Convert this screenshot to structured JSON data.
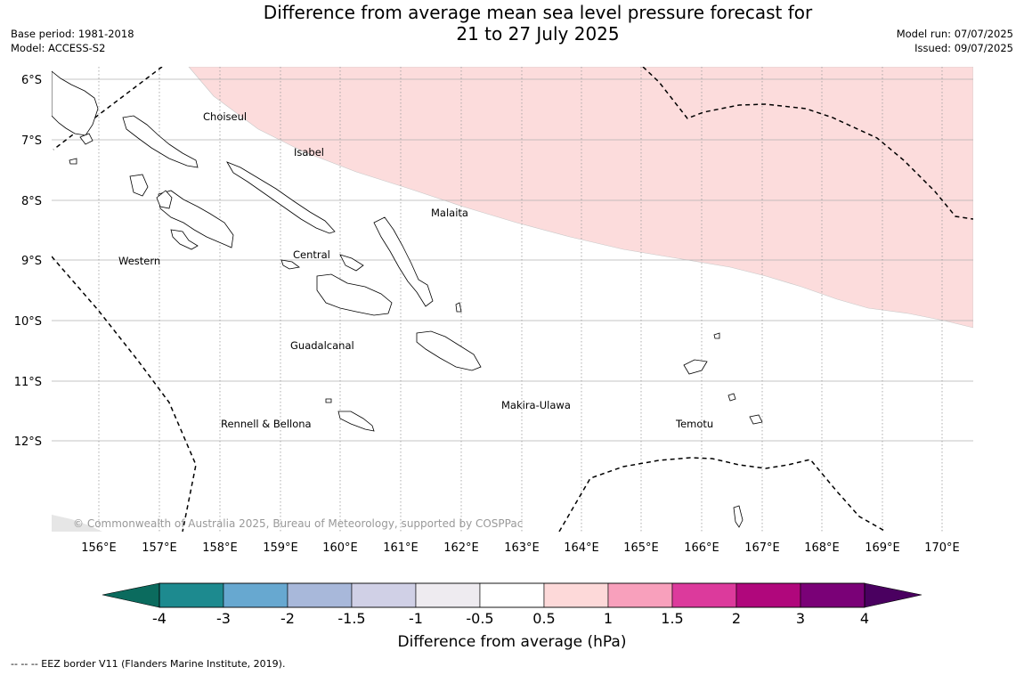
{
  "title": {
    "line1": "Difference from average mean sea level pressure forecast for",
    "line2": "21 to 27 July 2025"
  },
  "meta": {
    "base_period": "Base period: 1981-2018",
    "model": "Model: ACCESS-S2",
    "model_run": "Model run: 07/07/2025",
    "issued": "Issued: 09/07/2025"
  },
  "map": {
    "lat_labels": [
      "6°S",
      "7°S",
      "8°S",
      "9°S",
      "10°S",
      "11°S",
      "12°S"
    ],
    "lon_labels": [
      "156°E",
      "157°E",
      "158°E",
      "159°E",
      "160°E",
      "161°E",
      "162°E",
      "163°E",
      "164°E",
      "165°E",
      "166°E",
      "167°E",
      "168°E",
      "169°E",
      "170°E"
    ],
    "province_labels": {
      "choiseul": "Choiseul",
      "isabel": "Isabel",
      "malaita": "Malaita",
      "western": "Western",
      "central": "Central",
      "guadalcanal": "Guadalcanal",
      "makira": "Makira-Ulawa",
      "rennell": "Rennell & Bellona",
      "temotu": "Temotu"
    },
    "copyright": "© Commonwealth of Australia 2025, Bureau of Meteorology, supported by COSPPac",
    "anomaly_region_color": "#fcdcdc",
    "anomaly_region_category": "0.5 to 1"
  },
  "colorbar": {
    "ticks": [
      "-4",
      "-3",
      "-2",
      "-1.5",
      "-1",
      "-0.5",
      "0.5",
      "1",
      "1.5",
      "2",
      "3",
      "4"
    ],
    "colors": [
      "#1d8a8f",
      "#67a8d0",
      "#a8b8da",
      "#d0d0e6",
      "#eeebf0",
      "#ffffff",
      "#fdd9d9",
      "#f8a0bc",
      "#dc3a9c",
      "#b0077c",
      "#7a0177"
    ],
    "low_extend_color": "#0b6b5e",
    "high_extend_color": "#4a0060",
    "label": "Difference from average (hPa)"
  },
  "footer": {
    "eez_note": "--  --  -- EEZ border V11 (Flanders Marine Institute, 2019)."
  }
}
